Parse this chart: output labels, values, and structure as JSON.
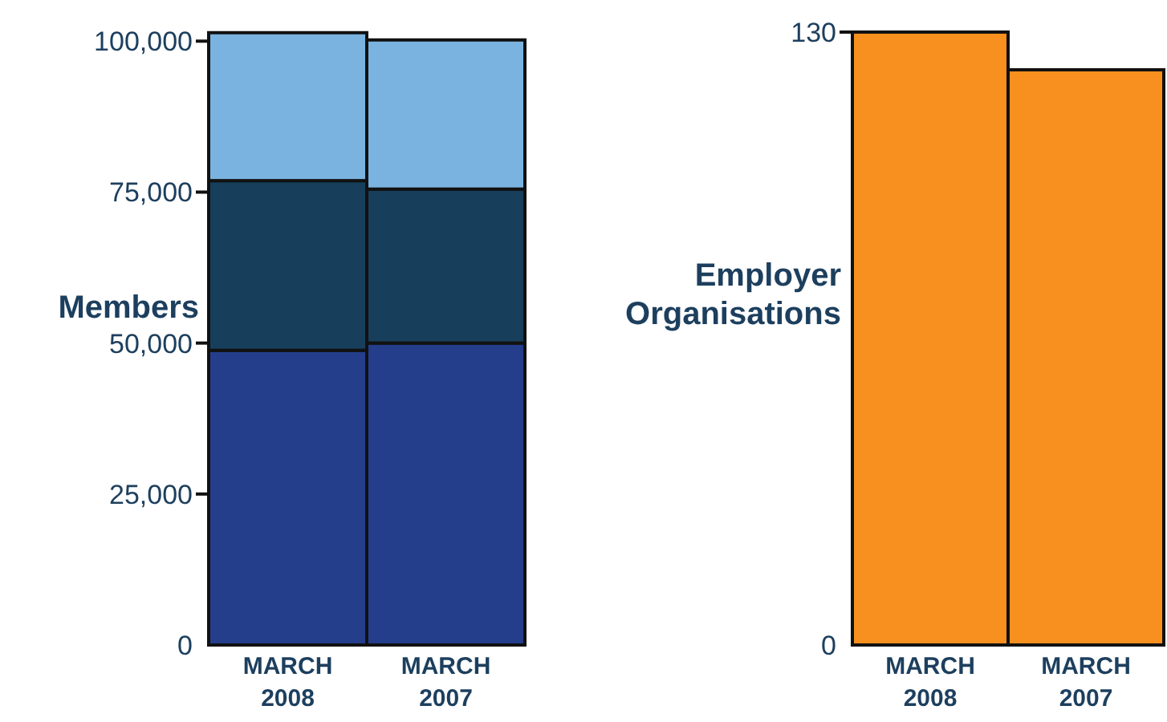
{
  "chart_data": [
    {
      "type": "bar",
      "ylabel": "Members",
      "categories": [
        "MARCH 2008",
        "MARCH 2007"
      ],
      "stacked": true,
      "series": [
        {
          "color": "#243e8c",
          "values": [
            48800,
            50000
          ]
        },
        {
          "color": "#173f5c",
          "values": [
            28100,
            25500
          ]
        },
        {
          "color": "#7ab3e0",
          "values": [
            24500,
            24700
          ]
        }
      ],
      "ylim": [
        0,
        101500
      ],
      "yticks": [
        {
          "value": 0,
          "label": "0"
        },
        {
          "value": 25000,
          "label": "25,000"
        },
        {
          "value": 50000,
          "label": "50,000"
        },
        {
          "value": 75000,
          "label": "75,000"
        },
        {
          "value": 100000,
          "label": "100,000"
        }
      ]
    },
    {
      "type": "bar",
      "ylabel": "Employer Organisations",
      "categories": [
        "MARCH 2008",
        "MARCH 2007"
      ],
      "series": [
        {
          "color": "#f7901e",
          "values": [
            130,
            122
          ]
        }
      ],
      "ylim": [
        0,
        130
      ],
      "yticks": [
        0,
        130
      ]
    }
  ]
}
